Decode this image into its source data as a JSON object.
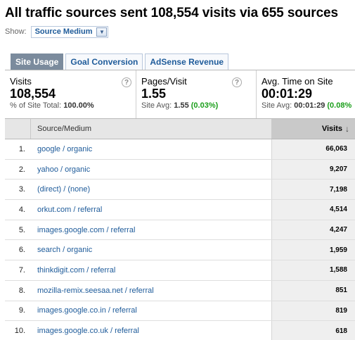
{
  "headline": "All traffic sources sent 108,554 visits via 655 sources",
  "show": {
    "label": "Show:",
    "selected": "Source Medium"
  },
  "tabs": [
    {
      "label": "Site Usage",
      "active": true
    },
    {
      "label": "Goal Conversion",
      "active": false
    },
    {
      "label": "AdSense Revenue",
      "active": false
    }
  ],
  "metrics": [
    {
      "title": "Visits",
      "value": "108,554",
      "sub_prefix": "% of Site Total:",
      "sub_value": "100.00%",
      "sub_delta": ""
    },
    {
      "title": "Pages/Visit",
      "value": "1.55",
      "sub_prefix": "Site Avg:",
      "sub_value": "1.55",
      "sub_delta": "(0.03%)"
    },
    {
      "title": "Avg. Time on Site",
      "value": "00:01:29",
      "sub_prefix": "Site Avg:",
      "sub_value": "00:01:29",
      "sub_delta": "(0.08%"
    }
  ],
  "table": {
    "col_source": "Source/Medium",
    "col_visits": "Visits",
    "rows": [
      {
        "idx": "1.",
        "source": "google / organic",
        "visits": "66,063"
      },
      {
        "idx": "2.",
        "source": "yahoo / organic",
        "visits": "9,207"
      },
      {
        "idx": "3.",
        "source": "(direct) / (none)",
        "visits": "7,198"
      },
      {
        "idx": "4.",
        "source": "orkut.com / referral",
        "visits": "4,514"
      },
      {
        "idx": "5.",
        "source": "images.google.com / referral",
        "visits": "4,247"
      },
      {
        "idx": "6.",
        "source": "search / organic",
        "visits": "1,959"
      },
      {
        "idx": "7.",
        "source": "thinkdigit.com / referral",
        "visits": "1,588"
      },
      {
        "idx": "8.",
        "source": "mozilla-remix.seesaa.net / referral",
        "visits": "851"
      },
      {
        "idx": "9.",
        "source": "images.google.co.in / referral",
        "visits": "819"
      },
      {
        "idx": "10.",
        "source": "images.google.co.uk / referral",
        "visits": "618"
      }
    ]
  }
}
